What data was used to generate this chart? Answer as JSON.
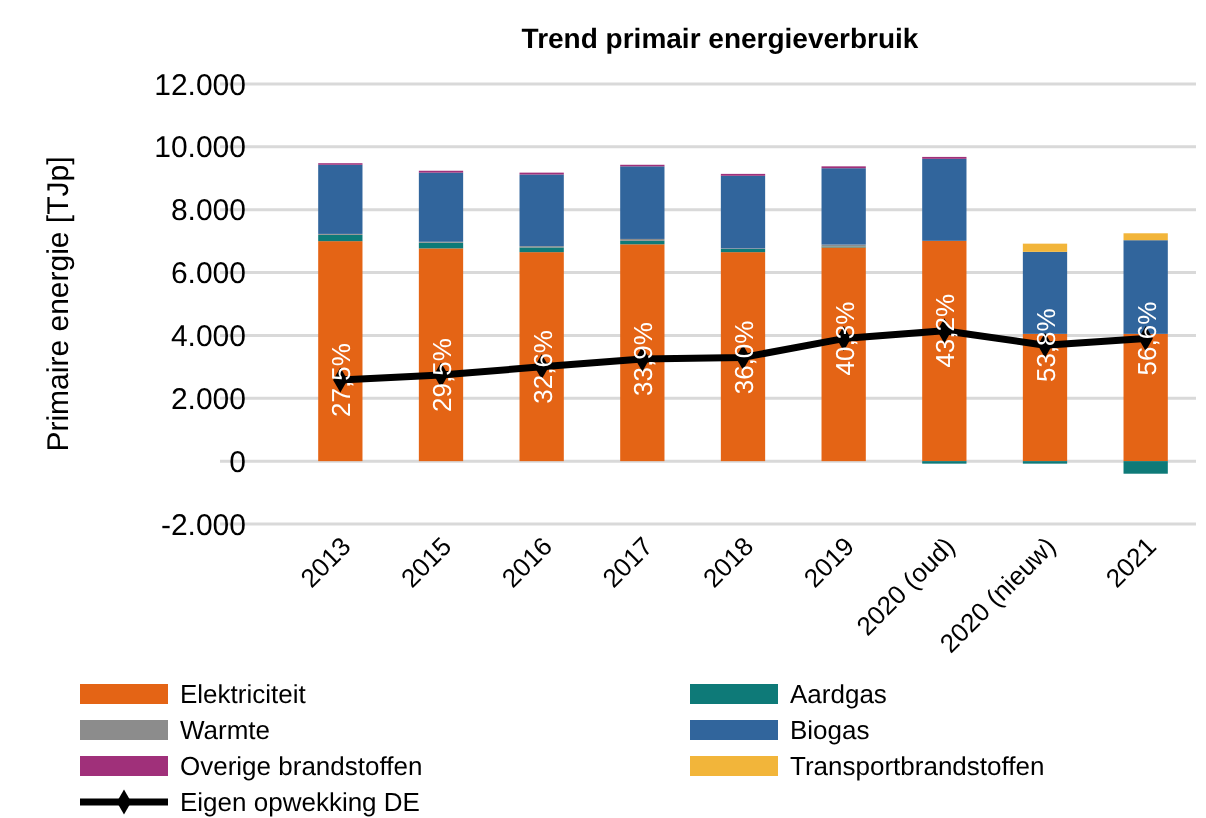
{
  "chart_data": {
    "type": "bar",
    "stacked": true,
    "title": "Trend primair energieverbruik",
    "ylabel": "Primaire energie [TJp]",
    "categories": [
      "2013",
      "2015",
      "2016",
      "2017",
      "2018",
      "2019",
      "2020 (oud)",
      "2020 (nieuw)",
      "2021"
    ],
    "ylim": [
      -2000,
      12000
    ],
    "yticks": [
      {
        "value": -2000,
        "label": "-2.000"
      },
      {
        "value": 0,
        "label": "0"
      },
      {
        "value": 2000,
        "label": "2.000"
      },
      {
        "value": 4000,
        "label": "4.000"
      },
      {
        "value": 6000,
        "label": "6.000"
      },
      {
        "value": 8000,
        "label": "8.000"
      },
      {
        "value": 10000,
        "label": "10.000"
      },
      {
        "value": 12000,
        "label": "12.000"
      }
    ],
    "grid": "y",
    "legend": "bottom",
    "series": [
      {
        "name": "Elektriciteit",
        "color": "#e46415",
        "values": [
          7000,
          6770,
          6650,
          6900,
          6650,
          6800,
          7010,
          4050,
          4050
        ]
      },
      {
        "name": "Aardgas",
        "color": "#0e7a78",
        "values": [
          200,
          180,
          150,
          110,
          100,
          30,
          -80,
          -80,
          -400
        ]
      },
      {
        "name": "Warmte",
        "color": "#8c8c8c",
        "values": [
          30,
          30,
          40,
          60,
          20,
          60,
          0,
          0,
          0
        ]
      },
      {
        "name": "Biogas",
        "color": "#31659c",
        "values": [
          2200,
          2200,
          2280,
          2310,
          2310,
          2430,
          2610,
          2610,
          2980
        ]
      },
      {
        "name": "Overige brandstoffen",
        "color": "#a0307a",
        "values": [
          50,
          60,
          60,
          50,
          60,
          60,
          60,
          0,
          0
        ]
      },
      {
        "name": "Transportbrandstoffen",
        "color": "#f2b53a",
        "values": [
          0,
          0,
          0,
          0,
          0,
          0,
          0,
          260,
          220
        ]
      },
      {
        "name": "Eigen opwekking DE",
        "type": "line",
        "color": "#000000",
        "marker": "diamond",
        "line_style": "solid",
        "values": [
          2580,
          2740,
          3000,
          3250,
          3300,
          3900,
          4150,
          3690,
          3900
        ]
      }
    ],
    "annotations": [
      {
        "text": "27,5%",
        "x": "2013",
        "y": 2580
      },
      {
        "text": "29,5%",
        "x": "2015",
        "y": 2740
      },
      {
        "text": "32,6%",
        "x": "2016",
        "y": 3000
      },
      {
        "text": "33,9%",
        "x": "2017",
        "y": 3250
      },
      {
        "text": "36,0%",
        "x": "2018",
        "y": 3300
      },
      {
        "text": "40,3%",
        "x": "2019",
        "y": 3900
      },
      {
        "text": "43,2%",
        "x": "2020 (oud)",
        "y": 4150
      },
      {
        "text": "53,8%",
        "x": "2020 (nieuw)",
        "y": 3690
      },
      {
        "text": "56,6%",
        "x": "2021",
        "y": 3900
      }
    ]
  }
}
